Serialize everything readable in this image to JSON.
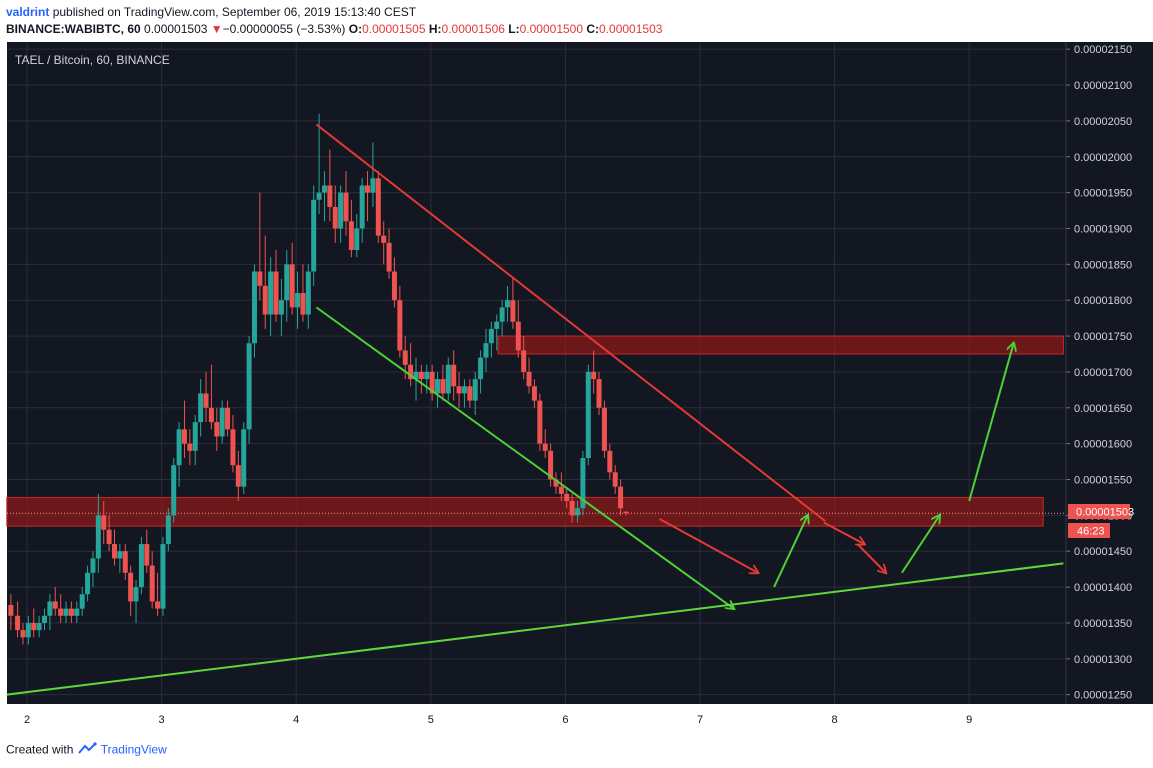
{
  "header": {
    "author": "valdrint",
    "published_text": "published on TradingView.com, September 06, 2019 15:13:40 CEST",
    "symbol": "BINANCE:WABIBTC, 60",
    "last": "0.00001503",
    "down_arrow": "▼",
    "change": "−0.00000055 (−3.53%)",
    "o_label": "O:",
    "o_value": "0.00001505",
    "h_label": "H:",
    "h_value": "0.00001506",
    "l_label": "L:",
    "l_value": "0.00001500",
    "c_label": "C:",
    "c_value": "0.00001503"
  },
  "pair_label": "TAEL / Bitcoin, 60, BINANCE",
  "price_badge": "0.00001503",
  "countdown_badge": "46:23",
  "footer": {
    "created_with": "Created with",
    "brand": "TradingView"
  },
  "colors": {
    "background": "#131722",
    "grid": "#2a2e39",
    "up": "#26a69a",
    "down": "#ef5350",
    "zone": "#8b1a1a",
    "trend_red": "#e53935",
    "trend_green": "#4caf50",
    "projection_green": "#4cd137"
  },
  "chart_data": {
    "type": "candlestick",
    "interval": "60",
    "yticks": [
      "0.00002150",
      "0.00002100",
      "0.00002050",
      "0.00002000",
      "0.00001950",
      "0.00001900",
      "0.00001850",
      "0.00001800",
      "0.00001750",
      "0.00001700",
      "0.00001650",
      "0.00001600",
      "0.00001550",
      "0.00001500",
      "0.00001450",
      "0.00001400",
      "0.00001350",
      "0.00001300",
      "0.00001250"
    ],
    "xticks": [
      "2",
      "3",
      "4",
      "5",
      "6",
      "7",
      "8",
      "9"
    ],
    "ylim": [
      1.237e-05,
      2.16e-05
    ],
    "last_price": 1.503e-05,
    "resistance_zones": [
      {
        "low": 1.725e-05,
        "high": 1.75e-05,
        "from_day": 5.5,
        "to_day": 9.7
      },
      {
        "low": 1.485e-05,
        "high": 1.525e-05,
        "from_day": 1.85,
        "to_day": 9.55
      }
    ],
    "trendlines": [
      {
        "role": "descending-resistance",
        "color": "red",
        "from": [
          4.15,
          2.045e-05
        ],
        "to": [
          7.93,
          1.492e-05
        ]
      },
      {
        "role": "descending-support",
        "color": "green",
        "from": [
          4.15,
          1.79e-05
        ],
        "to": [
          7.25,
          1.37e-05
        ],
        "arrow": true
      },
      {
        "role": "ascending-support",
        "color": "green",
        "from": [
          1.85,
          1.25e-05
        ],
        "to": [
          9.7,
          1.433e-05
        ]
      }
    ],
    "projection_arrows": [
      {
        "color": "red",
        "from": [
          6.7,
          1.495e-05
        ],
        "to": [
          7.43,
          1.42e-05
        ]
      },
      {
        "color": "green",
        "from": [
          7.55,
          1.4e-05
        ],
        "to": [
          7.8,
          1.5e-05
        ]
      },
      {
        "color": "red",
        "from": [
          7.92,
          1.49e-05
        ],
        "to": [
          8.22,
          1.46e-05
        ]
      },
      {
        "color": "red",
        "from": [
          8.17,
          1.46e-05
        ],
        "to": [
          8.38,
          1.42e-05
        ]
      },
      {
        "color": "green",
        "from": [
          8.5,
          1.42e-05
        ],
        "to": [
          8.78,
          1.5e-05
        ]
      },
      {
        "color": "green",
        "from": [
          9.0,
          1.52e-05
        ],
        "to": [
          9.33,
          1.74e-05
        ]
      }
    ],
    "candles": [
      {
        "t": 1.88,
        "o": 1.375e-05,
        "h": 1.39e-05,
        "l": 1.34e-05,
        "c": 1.36e-05
      },
      {
        "t": 1.93,
        "o": 1.36e-05,
        "h": 1.38e-05,
        "l": 1.33e-05,
        "c": 1.34e-05
      },
      {
        "t": 1.97,
        "o": 1.34e-05,
        "h": 1.35e-05,
        "l": 1.32e-05,
        "c": 1.33e-05
      },
      {
        "t": 2.01,
        "o": 1.33e-05,
        "h": 1.36e-05,
        "l": 1.32e-05,
        "c": 1.35e-05
      },
      {
        "t": 2.05,
        "o": 1.35e-05,
        "h": 1.37e-05,
        "l": 1.33e-05,
        "c": 1.34e-05
      },
      {
        "t": 2.09,
        "o": 1.34e-05,
        "h": 1.36e-05,
        "l": 1.33e-05,
        "c": 1.35e-05
      },
      {
        "t": 2.13,
        "o": 1.35e-05,
        "h": 1.37e-05,
        "l": 1.34e-05,
        "c": 1.36e-05
      },
      {
        "t": 2.17,
        "o": 1.36e-05,
        "h": 1.39e-05,
        "l": 1.34e-05,
        "c": 1.38e-05
      },
      {
        "t": 2.21,
        "o": 1.38e-05,
        "h": 1.4e-05,
        "l": 1.36e-05,
        "c": 1.37e-05
      },
      {
        "t": 2.25,
        "o": 1.37e-05,
        "h": 1.39e-05,
        "l": 1.35e-05,
        "c": 1.36e-05
      },
      {
        "t": 2.29,
        "o": 1.36e-05,
        "h": 1.38e-05,
        "l": 1.35e-05,
        "c": 1.37e-05
      },
      {
        "t": 2.33,
        "o": 1.37e-05,
        "h": 1.38e-05,
        "l": 1.35e-05,
        "c": 1.36e-05
      },
      {
        "t": 2.37,
        "o": 1.36e-05,
        "h": 1.38e-05,
        "l": 1.35e-05,
        "c": 1.37e-05
      },
      {
        "t": 2.41,
        "o": 1.37e-05,
        "h": 1.4e-05,
        "l": 1.36e-05,
        "c": 1.39e-05
      },
      {
        "t": 2.45,
        "o": 1.39e-05,
        "h": 1.43e-05,
        "l": 1.38e-05,
        "c": 1.42e-05
      },
      {
        "t": 2.49,
        "o": 1.42e-05,
        "h": 1.45e-05,
        "l": 1.4e-05,
        "c": 1.44e-05
      },
      {
        "t": 2.53,
        "o": 1.44e-05,
        "h": 1.53e-05,
        "l": 1.42e-05,
        "c": 1.5e-05
      },
      {
        "t": 2.57,
        "o": 1.5e-05,
        "h": 1.52e-05,
        "l": 1.46e-05,
        "c": 1.48e-05
      },
      {
        "t": 2.61,
        "o": 1.48e-05,
        "h": 1.5e-05,
        "l": 1.45e-05,
        "c": 1.46e-05
      },
      {
        "t": 2.65,
        "o": 1.46e-05,
        "h": 1.48e-05,
        "l": 1.43e-05,
        "c": 1.44e-05
      },
      {
        "t": 2.69,
        "o": 1.44e-05,
        "h": 1.46e-05,
        "l": 1.42e-05,
        "c": 1.45e-05
      },
      {
        "t": 2.73,
        "o": 1.45e-05,
        "h": 1.46e-05,
        "l": 1.41e-05,
        "c": 1.42e-05
      },
      {
        "t": 2.77,
        "o": 1.42e-05,
        "h": 1.43e-05,
        "l": 1.36e-05,
        "c": 1.38e-05
      },
      {
        "t": 2.81,
        "o": 1.38e-05,
        "h": 1.41e-05,
        "l": 1.35e-05,
        "c": 1.4e-05
      },
      {
        "t": 2.85,
        "o": 1.4e-05,
        "h": 1.47e-05,
        "l": 1.39e-05,
        "c": 1.46e-05
      },
      {
        "t": 2.89,
        "o": 1.46e-05,
        "h": 1.48e-05,
        "l": 1.42e-05,
        "c": 1.43e-05
      },
      {
        "t": 2.93,
        "o": 1.43e-05,
        "h": 1.45e-05,
        "l": 1.37e-05,
        "c": 1.38e-05
      },
      {
        "t": 2.97,
        "o": 1.38e-05,
        "h": 1.42e-05,
        "l": 1.36e-05,
        "c": 1.37e-05
      },
      {
        "t": 3.01,
        "o": 1.37e-05,
        "h": 1.47e-05,
        "l": 1.36e-05,
        "c": 1.46e-05
      },
      {
        "t": 3.05,
        "o": 1.46e-05,
        "h": 1.51e-05,
        "l": 1.45e-05,
        "c": 1.5e-05
      },
      {
        "t": 3.09,
        "o": 1.5e-05,
        "h": 1.58e-05,
        "l": 1.49e-05,
        "c": 1.57e-05
      },
      {
        "t": 3.13,
        "o": 1.57e-05,
        "h": 1.63e-05,
        "l": 1.54e-05,
        "c": 1.62e-05
      },
      {
        "t": 3.17,
        "o": 1.62e-05,
        "h": 1.66e-05,
        "l": 1.58e-05,
        "c": 1.6e-05
      },
      {
        "t": 3.21,
        "o": 1.6e-05,
        "h": 1.62e-05,
        "l": 1.57e-05,
        "c": 1.59e-05
      },
      {
        "t": 3.25,
        "o": 1.59e-05,
        "h": 1.64e-05,
        "l": 1.57e-05,
        "c": 1.63e-05
      },
      {
        "t": 3.29,
        "o": 1.63e-05,
        "h": 1.69e-05,
        "l": 1.61e-05,
        "c": 1.67e-05
      },
      {
        "t": 3.33,
        "o": 1.67e-05,
        "h": 1.7e-05,
        "l": 1.63e-05,
        "c": 1.65e-05
      },
      {
        "t": 3.37,
        "o": 1.65e-05,
        "h": 1.71e-05,
        "l": 1.62e-05,
        "c": 1.63e-05
      },
      {
        "t": 3.41,
        "o": 1.63e-05,
        "h": 1.65e-05,
        "l": 1.59e-05,
        "c": 1.61e-05
      },
      {
        "t": 3.45,
        "o": 1.61e-05,
        "h": 1.66e-05,
        "l": 1.6e-05,
        "c": 1.65e-05
      },
      {
        "t": 3.49,
        "o": 1.65e-05,
        "h": 1.66e-05,
        "l": 1.61e-05,
        "c": 1.62e-05
      },
      {
        "t": 3.53,
        "o": 1.62e-05,
        "h": 1.64e-05,
        "l": 1.56e-05,
        "c": 1.57e-05
      },
      {
        "t": 3.57,
        "o": 1.57e-05,
        "h": 1.59e-05,
        "l": 1.52e-05,
        "c": 1.54e-05
      },
      {
        "t": 3.61,
        "o": 1.54e-05,
        "h": 1.63e-05,
        "l": 1.53e-05,
        "c": 1.62e-05
      },
      {
        "t": 3.65,
        "o": 1.62e-05,
        "h": 1.75e-05,
        "l": 1.6e-05,
        "c": 1.74e-05
      },
      {
        "t": 3.69,
        "o": 1.74e-05,
        "h": 1.85e-05,
        "l": 1.72e-05,
        "c": 1.84e-05
      },
      {
        "t": 3.73,
        "o": 1.84e-05,
        "h": 1.95e-05,
        "l": 1.8e-05,
        "c": 1.82e-05
      },
      {
        "t": 3.77,
        "o": 1.82e-05,
        "h": 1.89e-05,
        "l": 1.76e-05,
        "c": 1.78e-05
      },
      {
        "t": 3.81,
        "o": 1.78e-05,
        "h": 1.86e-05,
        "l": 1.75e-05,
        "c": 1.84e-05
      },
      {
        "t": 3.85,
        "o": 1.84e-05,
        "h": 1.87e-05,
        "l": 1.77e-05,
        "c": 1.78e-05
      },
      {
        "t": 3.89,
        "o": 1.78e-05,
        "h": 1.83e-05,
        "l": 1.75e-05,
        "c": 1.8e-05
      },
      {
        "t": 3.93,
        "o": 1.8e-05,
        "h": 1.87e-05,
        "l": 1.77e-05,
        "c": 1.85e-05
      },
      {
        "t": 3.97,
        "o": 1.85e-05,
        "h": 1.88e-05,
        "l": 1.78e-05,
        "c": 1.79e-05
      },
      {
        "t": 4.01,
        "o": 1.79e-05,
        "h": 1.84e-05,
        "l": 1.76e-05,
        "c": 1.81e-05
      },
      {
        "t": 4.05,
        "o": 1.81e-05,
        "h": 1.85e-05,
        "l": 1.77e-05,
        "c": 1.78e-05
      },
      {
        "t": 4.09,
        "o": 1.78e-05,
        "h": 1.85e-05,
        "l": 1.76e-05,
        "c": 1.84e-05
      },
      {
        "t": 4.13,
        "o": 1.84e-05,
        "h": 1.96e-05,
        "l": 1.82e-05,
        "c": 1.94e-05
      },
      {
        "t": 4.17,
        "o": 1.94e-05,
        "h": 2.06e-05,
        "l": 1.92e-05,
        "c": 1.95e-05
      },
      {
        "t": 4.21,
        "o": 1.95e-05,
        "h": 1.98e-05,
        "l": 1.91e-05,
        "c": 1.96e-05
      },
      {
        "t": 4.25,
        "o": 1.96e-05,
        "h": 2.01e-05,
        "l": 1.91e-05,
        "c": 1.93e-05
      },
      {
        "t": 4.29,
        "o": 1.93e-05,
        "h": 1.96e-05,
        "l": 1.88e-05,
        "c": 1.9e-05
      },
      {
        "t": 4.33,
        "o": 1.9e-05,
        "h": 1.96e-05,
        "l": 1.88e-05,
        "c": 1.95e-05
      },
      {
        "t": 4.37,
        "o": 1.95e-05,
        "h": 1.98e-05,
        "l": 1.89e-05,
        "c": 1.91e-05
      },
      {
        "t": 4.41,
        "o": 1.91e-05,
        "h": 1.94e-05,
        "l": 1.86e-05,
        "c": 1.87e-05
      },
      {
        "t": 4.45,
        "o": 1.87e-05,
        "h": 1.92e-05,
        "l": 1.86e-05,
        "c": 1.9e-05
      },
      {
        "t": 4.49,
        "o": 1.9e-05,
        "h": 1.97e-05,
        "l": 1.88e-05,
        "c": 1.96e-05
      },
      {
        "t": 4.53,
        "o": 1.96e-05,
        "h": 1.98e-05,
        "l": 1.91e-05,
        "c": 1.95e-05
      },
      {
        "t": 4.57,
        "o": 1.95e-05,
        "h": 2.02e-05,
        "l": 1.93e-05,
        "c": 1.97e-05
      },
      {
        "t": 4.61,
        "o": 1.97e-05,
        "h": 1.98e-05,
        "l": 1.88e-05,
        "c": 1.89e-05
      },
      {
        "t": 4.65,
        "o": 1.89e-05,
        "h": 1.91e-05,
        "l": 1.85e-05,
        "c": 1.88e-05
      },
      {
        "t": 4.69,
        "o": 1.88e-05,
        "h": 1.9e-05,
        "l": 1.83e-05,
        "c": 1.84e-05
      },
      {
        "t": 4.73,
        "o": 1.84e-05,
        "h": 1.86e-05,
        "l": 1.79e-05,
        "c": 1.8e-05
      },
      {
        "t": 4.77,
        "o": 1.8e-05,
        "h": 1.82e-05,
        "l": 1.72e-05,
        "c": 1.73e-05
      },
      {
        "t": 4.81,
        "o": 1.73e-05,
        "h": 1.75e-05,
        "l": 1.69e-05,
        "c": 1.71e-05
      },
      {
        "t": 4.85,
        "o": 1.71e-05,
        "h": 1.74e-05,
        "l": 1.68e-05,
        "c": 1.69e-05
      },
      {
        "t": 4.89,
        "o": 1.69e-05,
        "h": 1.72e-05,
        "l": 1.66e-05,
        "c": 1.7e-05
      },
      {
        "t": 4.93,
        "o": 1.7e-05,
        "h": 1.71e-05,
        "l": 1.67e-05,
        "c": 1.69e-05
      },
      {
        "t": 4.97,
        "o": 1.69e-05,
        "h": 1.71e-05,
        "l": 1.67e-05,
        "c": 1.7e-05
      },
      {
        "t": 5.01,
        "o": 1.7e-05,
        "h": 1.71e-05,
        "l": 1.66e-05,
        "c": 1.67e-05
      },
      {
        "t": 5.05,
        "o": 1.67e-05,
        "h": 1.7e-05,
        "l": 1.65e-05,
        "c": 1.69e-05
      },
      {
        "t": 5.09,
        "o": 1.69e-05,
        "h": 1.71e-05,
        "l": 1.66e-05,
        "c": 1.67e-05
      },
      {
        "t": 5.13,
        "o": 1.67e-05,
        "h": 1.72e-05,
        "l": 1.66e-05,
        "c": 1.71e-05
      },
      {
        "t": 5.17,
        "o": 1.71e-05,
        "h": 1.73e-05,
        "l": 1.66e-05,
        "c": 1.68e-05
      },
      {
        "t": 5.21,
        "o": 1.68e-05,
        "h": 1.7e-05,
        "l": 1.65e-05,
        "c": 1.67e-05
      },
      {
        "t": 5.25,
        "o": 1.67e-05,
        "h": 1.69e-05,
        "l": 1.65e-05,
        "c": 1.68e-05
      },
      {
        "t": 5.29,
        "o": 1.68e-05,
        "h": 1.69e-05,
        "l": 1.65e-05,
        "c": 1.66e-05
      },
      {
        "t": 5.33,
        "o": 1.66e-05,
        "h": 1.7e-05,
        "l": 1.64e-05,
        "c": 1.69e-05
      },
      {
        "t": 5.37,
        "o": 1.69e-05,
        "h": 1.73e-05,
        "l": 1.67e-05,
        "c": 1.72e-05
      },
      {
        "t": 5.41,
        "o": 1.72e-05,
        "h": 1.76e-05,
        "l": 1.7e-05,
        "c": 1.74e-05
      },
      {
        "t": 5.45,
        "o": 1.74e-05,
        "h": 1.77e-05,
        "l": 1.72e-05,
        "c": 1.76e-05
      },
      {
        "t": 5.49,
        "o": 1.76e-05,
        "h": 1.78e-05,
        "l": 1.73e-05,
        "c": 1.77e-05
      },
      {
        "t": 5.53,
        "o": 1.77e-05,
        "h": 1.8e-05,
        "l": 1.75e-05,
        "c": 1.79e-05
      },
      {
        "t": 5.57,
        "o": 1.79e-05,
        "h": 1.82e-05,
        "l": 1.77e-05,
        "c": 1.8e-05
      },
      {
        "t": 5.61,
        "o": 1.8e-05,
        "h": 1.83e-05,
        "l": 1.76e-05,
        "c": 1.77e-05
      },
      {
        "t": 5.65,
        "o": 1.77e-05,
        "h": 1.8e-05,
        "l": 1.72e-05,
        "c": 1.73e-05
      },
      {
        "t": 5.69,
        "o": 1.73e-05,
        "h": 1.75e-05,
        "l": 1.69e-05,
        "c": 1.7e-05
      },
      {
        "t": 5.73,
        "o": 1.7e-05,
        "h": 1.72e-05,
        "l": 1.67e-05,
        "c": 1.68e-05
      },
      {
        "t": 5.77,
        "o": 1.68e-05,
        "h": 1.69e-05,
        "l": 1.65e-05,
        "c": 1.66e-05
      },
      {
        "t": 5.81,
        "o": 1.66e-05,
        "h": 1.67e-05,
        "l": 1.59e-05,
        "c": 1.6e-05
      },
      {
        "t": 5.85,
        "o": 1.6e-05,
        "h": 1.62e-05,
        "l": 1.58e-05,
        "c": 1.59e-05
      },
      {
        "t": 5.89,
        "o": 1.59e-05,
        "h": 1.6e-05,
        "l": 1.54e-05,
        "c": 1.55e-05
      },
      {
        "t": 5.93,
        "o": 1.55e-05,
        "h": 1.56e-05,
        "l": 1.53e-05,
        "c": 1.54e-05
      },
      {
        "t": 5.97,
        "o": 1.54e-05,
        "h": 1.56e-05,
        "l": 1.52e-05,
        "c": 1.53e-05
      },
      {
        "t": 6.01,
        "o": 1.53e-05,
        "h": 1.54e-05,
        "l": 1.51e-05,
        "c": 1.52e-05
      },
      {
        "t": 6.05,
        "o": 1.52e-05,
        "h": 1.53e-05,
        "l": 1.49e-05,
        "c": 1.5e-05
      },
      {
        "t": 6.09,
        "o": 1.5e-05,
        "h": 1.52e-05,
        "l": 1.49e-05,
        "c": 1.51e-05
      },
      {
        "t": 6.13,
        "o": 1.51e-05,
        "h": 1.59e-05,
        "l": 1.5e-05,
        "c": 1.58e-05
      },
      {
        "t": 6.17,
        "o": 1.58e-05,
        "h": 1.71e-05,
        "l": 1.57e-05,
        "c": 1.7e-05
      },
      {
        "t": 6.21,
        "o": 1.7e-05,
        "h": 1.73e-05,
        "l": 1.67e-05,
        "c": 1.69e-05
      },
      {
        "t": 6.25,
        "o": 1.69e-05,
        "h": 1.7e-05,
        "l": 1.64e-05,
        "c": 1.65e-05
      },
      {
        "t": 6.29,
        "o": 1.65e-05,
        "h": 1.66e-05,
        "l": 1.58e-05,
        "c": 1.59e-05
      },
      {
        "t": 6.33,
        "o": 1.59e-05,
        "h": 1.6e-05,
        "l": 1.55e-05,
        "c": 1.56e-05
      },
      {
        "t": 6.37,
        "o": 1.56e-05,
        "h": 1.57e-05,
        "l": 1.53e-05,
        "c": 1.54e-05
      },
      {
        "t": 6.41,
        "o": 1.54e-05,
        "h": 1.55e-05,
        "l": 1.5e-05,
        "c": 1.51e-05
      },
      {
        "t": 6.45,
        "o": 1.505e-05,
        "h": 1.506e-05,
        "l": 1.5e-05,
        "c": 1.503e-05
      }
    ]
  }
}
